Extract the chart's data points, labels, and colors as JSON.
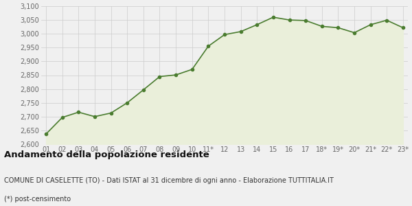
{
  "x_labels": [
    "01",
    "02",
    "03",
    "04",
    "05",
    "06",
    "07",
    "08",
    "09",
    "10",
    "11*",
    "12",
    "13",
    "14",
    "15",
    "16",
    "17",
    "18*",
    "19*",
    "20*",
    "21*",
    "22*",
    "23*"
  ],
  "values": [
    2637,
    2697,
    2716,
    2700,
    2713,
    2750,
    2797,
    2845,
    2851,
    2871,
    2955,
    2997,
    3008,
    3033,
    3060,
    3050,
    3048,
    3027,
    3022,
    3004,
    3033,
    3049,
    3022
  ],
  "line_color": "#4a7c2f",
  "fill_color": "#eaefda",
  "marker_color": "#4a7c2f",
  "bg_color": "#f0f0f0",
  "plot_bg_color": "#f0f0f0",
  "grid_color": "#cccccc",
  "ylim": [
    2600,
    3100
  ],
  "yticks": [
    2600,
    2650,
    2700,
    2750,
    2800,
    2850,
    2900,
    2950,
    3000,
    3050,
    3100
  ],
  "title": "Andamento della popolazione residente",
  "subtitle": "COMUNE DI CASELETTE (TO) - Dati ISTAT al 31 dicembre di ogni anno - Elaborazione TUTTITALIA.IT",
  "footnote": "(*) post-censimento",
  "title_fontsize": 9.5,
  "subtitle_fontsize": 7.0,
  "footnote_fontsize": 7.0,
  "tick_fontsize": 7,
  "axis_label_color": "#666666"
}
